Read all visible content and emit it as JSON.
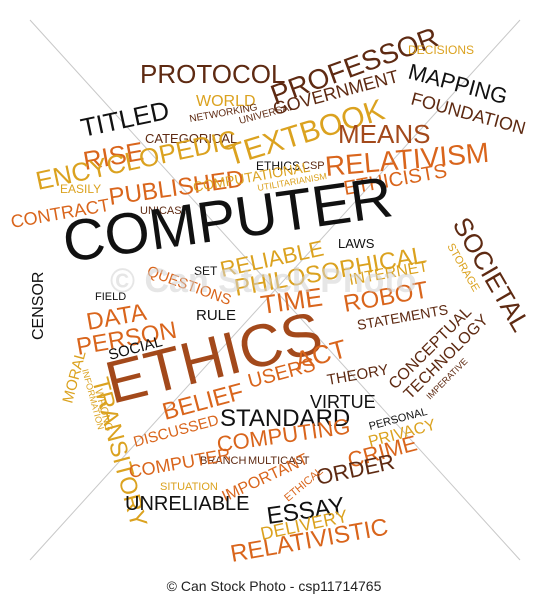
{
  "words": {
    "computer": "COMPUTER",
    "ethics": "ETHICS",
    "protocol": "PROTOCOL",
    "professor": "PROFESSOR",
    "mapping": "MAPPING",
    "foundation": "FOUNDATION",
    "decisions": "DECISIONS",
    "government": "GOVERNMENT",
    "world": "WORLD",
    "networking": "NETWORKING",
    "universal": "UNIVERSAL",
    "titled": "TITLED",
    "categorical": "CATEGORICAL",
    "textbook": "TEXTBOOK",
    "rise": "RISE",
    "encyclopedic": "ENCYCLOPEDIC",
    "means": "MEANS",
    "relativism": "RELATIVISM",
    "ethicists": "ETHICISTS",
    "easily": "EASILY",
    "published": "PUBLISHED",
    "ethics_small": "ETHICS",
    "csp": "CSP",
    "computational": "COMPUTATIONAL",
    "utilitarianism": "UTILITARIANISM",
    "contract": "CONTRACT",
    "unicast": "UNICAST",
    "societal": "SOCIETAL",
    "storage": "STORAGE",
    "reliable": "RELIABLE",
    "laws": "LAWS",
    "questions": "QUESTIONS",
    "set": "SET",
    "philosophical": "PHILOSOPHICAL",
    "internet": "INTERNET",
    "censor": "CENSOR",
    "field": "FIELD",
    "time": "TIME",
    "robot": "ROBOT",
    "rule": "RULE",
    "statements": "STATEMENTS",
    "data": "DATA",
    "person": "PERSON",
    "conceptual": "CONCEPTUAL",
    "technology": "TECHNOLOGY",
    "moral": "MORAL",
    "social": "SOCIAL",
    "wrong": "WRONG",
    "information": "INFORMATION",
    "theory": "THEORY",
    "imperative": "IMPERATIVE",
    "act": "ACT",
    "users": "USERS",
    "belief": "BELIEF",
    "virtue": "VIRTUE",
    "transitory": "TRANSITORY",
    "standard": "STANDARD",
    "personal": "PERSONAL",
    "privacy": "PRIVACY",
    "discussed": "DISCUSSED",
    "computing": "COMPUTING",
    "crime": "CRIME",
    "branch": "BRANCH",
    "multicast": "MULTICAST",
    "computer_small": "COMPUTER",
    "situation": "SITUATION",
    "important": "IMPORTANT",
    "order": "ORDER",
    "ethical": "ETHICAL",
    "unreliable": "UNRELIABLE",
    "essay": "ESSAY",
    "delivery": "DELIVERY",
    "relativistic": "RELATIVISTIC"
  },
  "colors": {
    "dark": "#111111",
    "gold": "#dba21f",
    "orange": "#d9651c",
    "rust": "#a3491b",
    "brown": "#5e2a12",
    "watermark": "#c8c8c8"
  },
  "watermark": {
    "text": "© Can Stock Photo"
  },
  "footer": {
    "credit": "© Can Stock Photo - csp11714765"
  }
}
